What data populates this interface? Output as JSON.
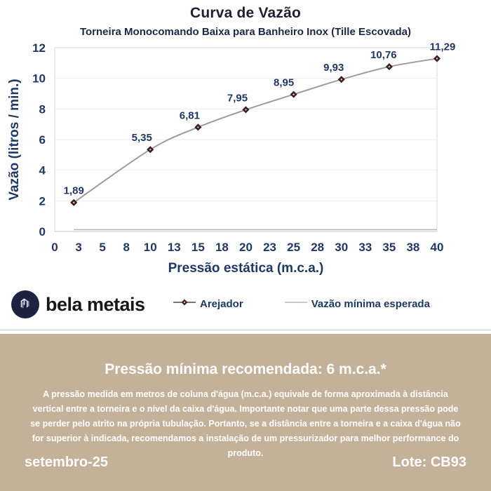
{
  "header": {
    "title": "Curva de Vazão",
    "subtitle": "Torneira Monocomando Baixa para Banheiro Inox (Tille Escovada)"
  },
  "chart_data": {
    "type": "line",
    "title": "Curva de Vazão",
    "xlabel": "Pressão estática (m.c.a.)",
    "ylabel": "Vazão (litros / min.)",
    "xlim": [
      0,
      40
    ],
    "ylim": [
      0,
      12
    ],
    "x_ticks": [
      "0",
      "3",
      "5",
      "8",
      "10",
      "13",
      "15",
      "18",
      "20",
      "23",
      "25",
      "28",
      "30",
      "33",
      "35",
      "38",
      "40"
    ],
    "y_ticks": [
      "0",
      "2",
      "4",
      "6",
      "8",
      "10",
      "12"
    ],
    "grid": "horizontal",
    "legend_position": "bottom",
    "series": [
      {
        "name": "Arejador",
        "x": [
          2,
          10,
          15,
          20,
          25,
          30,
          35,
          40
        ],
        "values": [
          1.89,
          5.35,
          6.81,
          7.95,
          8.95,
          9.93,
          10.76,
          11.29
        ],
        "labels": [
          "1,89",
          "5,35",
          "6,81",
          "7,95",
          "8,95",
          "9,93",
          "10,76",
          "11,29"
        ],
        "line_color": "#9b9b9b",
        "marker": "diamond",
        "marker_color": "#4a2320"
      },
      {
        "name": "Vazão mínima esperada",
        "x": [
          2,
          40
        ],
        "values": [
          0.12,
          0.12
        ],
        "labels": [],
        "line_color": "#b5b5b5",
        "marker": "none"
      }
    ]
  },
  "legend": {
    "items": [
      {
        "label": "Arejador"
      },
      {
        "label": "Vazão mínima esperada"
      }
    ]
  },
  "brand": {
    "name": "bela metais"
  },
  "info_panel": {
    "heading": "Pressão mínima recomendada: 6 m.c.a.*",
    "body": "A pressão medida em metros de coluna d'água (m.c.a.) equivale de forma aproximada à distância vertical entre a torneira e o nível da caixa d'água. Importante notar que uma parte dessa pressão pode se perder pelo atrito na própria tubulação. Portanto, se a distância entre a torneira e a caixa d'água não for superior à indicada, recomendamos a instalação de um pressurizador para melhor performance do produto.",
    "date": "setembro-25",
    "lot": "Lote: CB93"
  },
  "colors": {
    "accent_navy": "#1f3864",
    "title_dark": "#1b2130",
    "panel_tan": "#c3b299",
    "panel_text": "#ffffff",
    "curve_gray": "#9b9b9b",
    "min_line_gray": "#b5b5b5",
    "marker_maroon": "#4a2320",
    "gridline": "#ebebeb",
    "logo_navy": "#1b2340"
  }
}
